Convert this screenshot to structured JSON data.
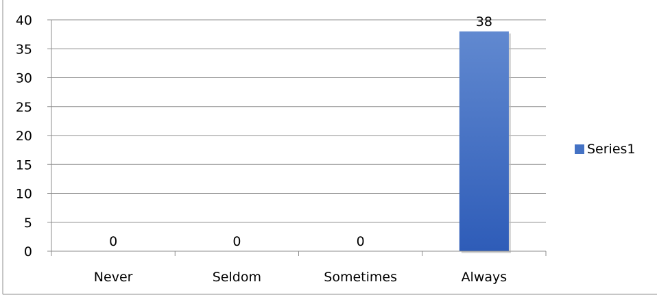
{
  "chart_data": {
    "type": "bar",
    "categories": [
      "Never",
      "Seldom",
      "Sometimes",
      "Always"
    ],
    "series": [
      {
        "name": "Series1",
        "values": [
          0,
          0,
          0,
          38
        ],
        "color": "#4472C4"
      }
    ],
    "data_labels": [
      "0",
      "0",
      "0",
      "38"
    ],
    "ylim": [
      0,
      40
    ],
    "yticks": [
      0,
      5,
      10,
      15,
      20,
      25,
      30,
      35,
      40
    ],
    "grid": true,
    "legend_position": "right"
  }
}
